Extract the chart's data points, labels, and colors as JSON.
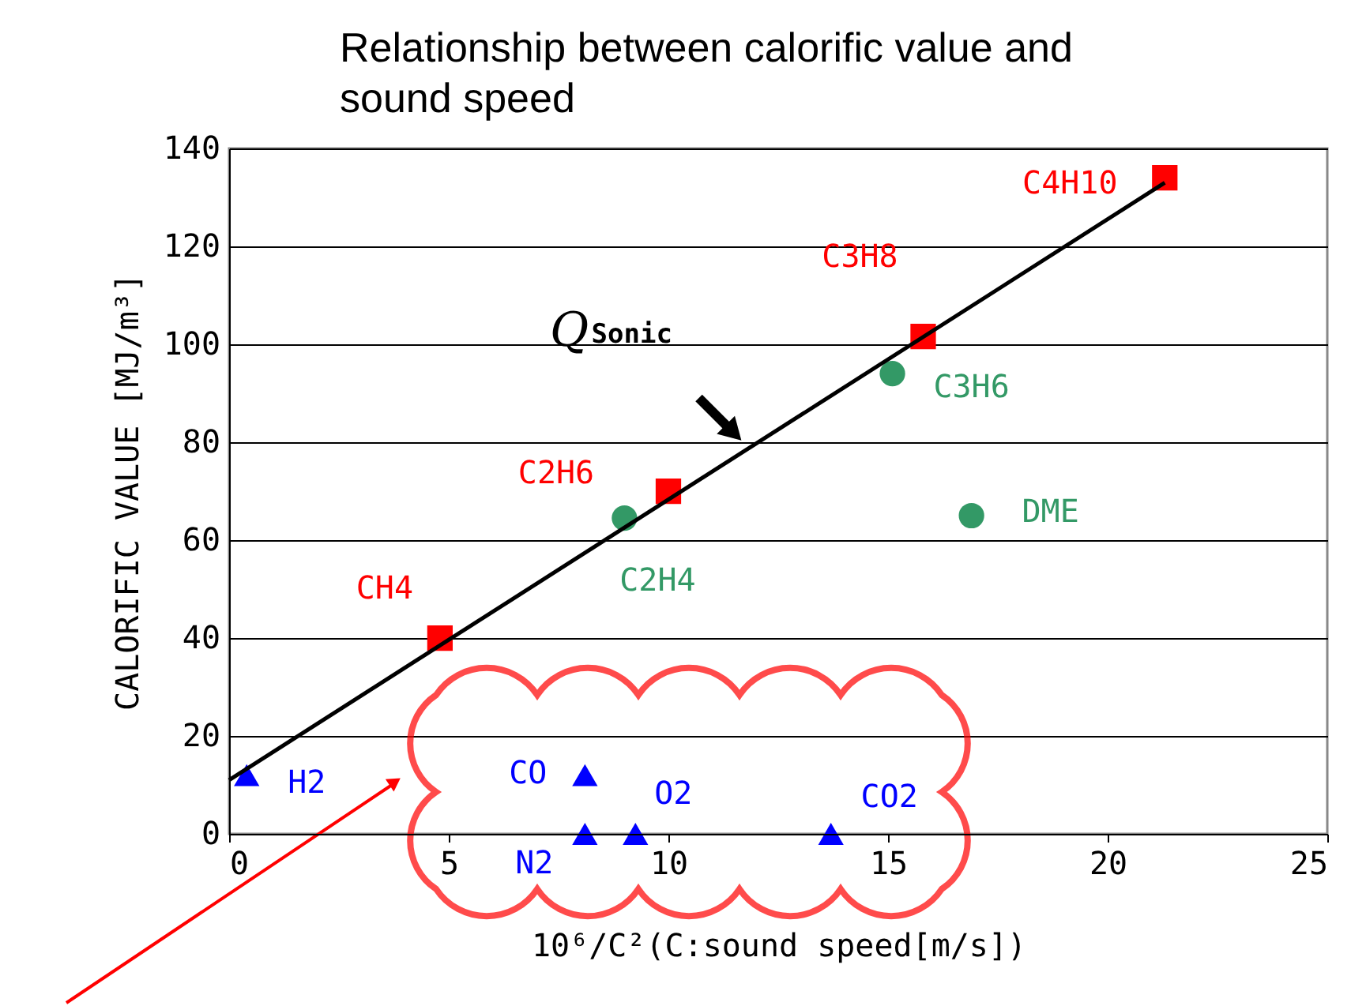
{
  "chart_data": {
    "type": "scatter",
    "title": "Relationship between calorific value and sound speed",
    "xlabel": "10⁶/C²(C:sound speed[m/s])",
    "ylabel": "CALORIFIC VALUE [MJ/m³]",
    "xlim": [
      0,
      25
    ],
    "xticks": [
      0,
      5,
      10,
      15,
      20,
      25
    ],
    "ylim": [
      0,
      140
    ],
    "yticks": [
      0,
      20,
      40,
      60,
      80,
      100,
      120,
      140
    ],
    "grid": "y",
    "series": [
      {
        "marker": "square",
        "color": "#ff0000",
        "x": [
          21.3,
          15.8,
          10.0,
          4.8
        ],
        "values": [
          134,
          101.6,
          70,
          40
        ]
      },
      {
        "marker": "circle",
        "color": "#339966",
        "x": [
          15.1,
          16.9,
          9.0
        ],
        "values": [
          94,
          65,
          64.5
        ]
      },
      {
        "marker": "triangle",
        "color": "#0000ff",
        "x": [
          0.4,
          8.1,
          8.1,
          9.25,
          13.7
        ],
        "values": [
          12,
          12,
          0,
          0,
          0
        ]
      },
      {
        "type": "line",
        "line_style": "solid",
        "color": "#000000",
        "x": [
          0,
          21.3
        ],
        "values": [
          11,
          133
        ]
      }
    ],
    "annotations": [
      {
        "text": "C4H10",
        "x": 21.3,
        "y": 134
      },
      {
        "text": "C3H8",
        "x": 15.8,
        "y": 101.6
      },
      {
        "text": "C2H6",
        "x": 10.0,
        "y": 70
      },
      {
        "text": "CH4",
        "x": 4.8,
        "y": 40
      },
      {
        "text": "C3H6",
        "x": 15.1,
        "y": 94
      },
      {
        "text": "DME",
        "x": 16.9,
        "y": 65
      },
      {
        "text": "C2H4",
        "x": 9.0,
        "y": 64.5
      },
      {
        "text": "H2",
        "x": 0.4,
        "y": 12
      },
      {
        "text": "CO",
        "x": 8.1,
        "y": 12
      },
      {
        "text": "N2",
        "x": 8.1,
        "y": 0
      },
      {
        "text": "O2",
        "x": 9.25,
        "y": 0
      },
      {
        "text": "CO2",
        "x": 13.7,
        "y": 0
      },
      {
        "text": "Q$_{Sonic}$",
        "x": 11.7,
        "y": 80
      }
    ]
  }
}
